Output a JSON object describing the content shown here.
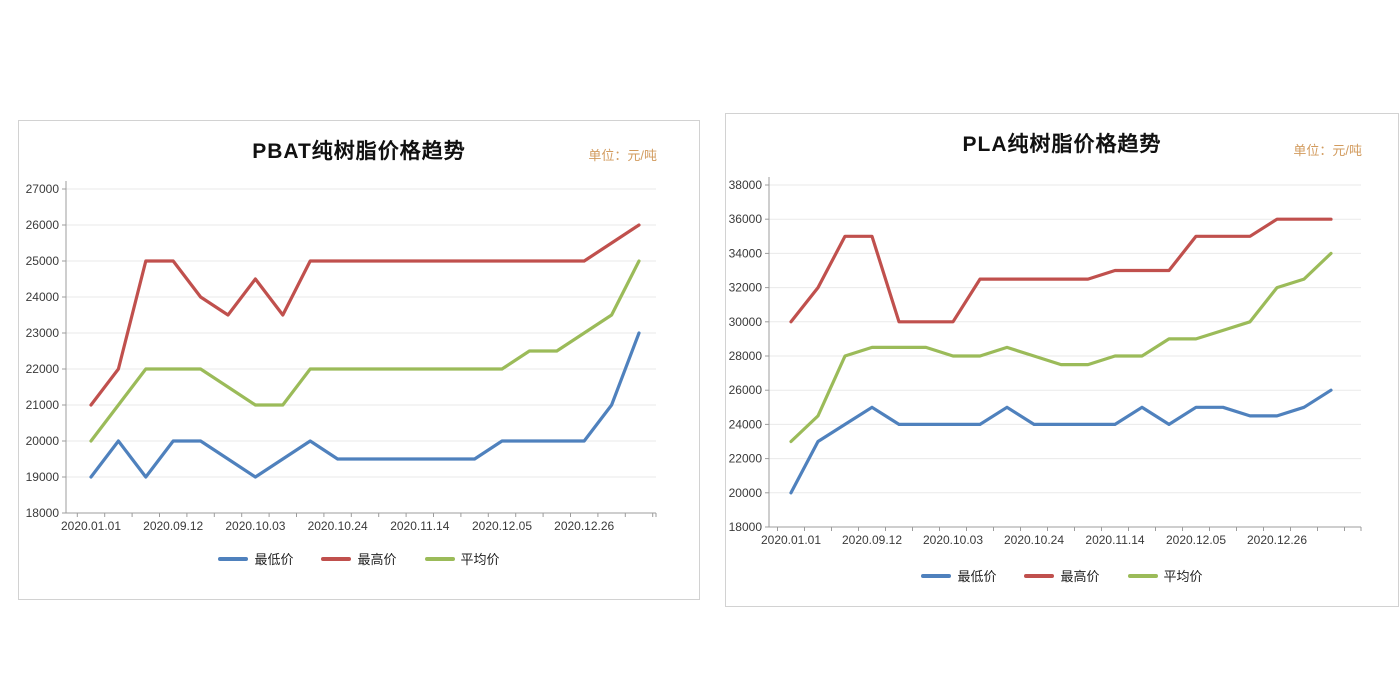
{
  "page": {
    "background": "#ffffff"
  },
  "chart_data": [
    {
      "type": "line",
      "title": "PBAT纯树脂价格趋势",
      "unit": "单位：元/吨",
      "xlabel": "",
      "ylabel": "",
      "ylim": [
        18000,
        27000
      ],
      "y_step": 1000,
      "n_points": 21,
      "x_label_interval": 3,
      "x_tick_labels": [
        "2020.01.01",
        "2020.09.12",
        "2020.10.03",
        "2020.10.24",
        "2020.11.14",
        "2020.12.05",
        "2020.12.26"
      ],
      "grid": "horizontal",
      "legend_position": "bottom",
      "series": [
        {
          "name": "最低价",
          "color": "#4F81BD",
          "values": [
            19000,
            20000,
            19000,
            20000,
            20000,
            19500,
            19000,
            19500,
            20000,
            19500,
            19500,
            19500,
            19500,
            19500,
            19500,
            20000,
            20000,
            20000,
            20000,
            21000,
            23000
          ]
        },
        {
          "name": "最高价",
          "color": "#C0504D",
          "values": [
            21000,
            22000,
            25000,
            25000,
            24000,
            23500,
            24500,
            23500,
            25000,
            25000,
            25000,
            25000,
            25000,
            25000,
            25000,
            25000,
            25000,
            25000,
            25000,
            25500,
            26000
          ]
        },
        {
          "name": "平均价",
          "color": "#9BBB59",
          "values": [
            20000,
            21000,
            22000,
            22000,
            22000,
            21500,
            21000,
            21000,
            22000,
            22000,
            22000,
            22000,
            22000,
            22000,
            22000,
            22000,
            22500,
            22500,
            23000,
            23500,
            25000
          ]
        }
      ]
    },
    {
      "type": "line",
      "title": "PLA纯树脂价格趋势",
      "unit": "单位：元/吨",
      "xlabel": "",
      "ylabel": "",
      "ylim": [
        18000,
        38000
      ],
      "y_step": 2000,
      "n_points": 21,
      "x_label_interval": 3,
      "x_tick_labels": [
        "2020.01.01",
        "2020.09.12",
        "2020.10.03",
        "2020.10.24",
        "2020.11.14",
        "2020.12.05",
        "2020.12.26"
      ],
      "grid": "horizontal",
      "legend_position": "bottom",
      "series": [
        {
          "name": "最低价",
          "color": "#4F81BD",
          "values": [
            20000,
            23000,
            24000,
            25000,
            24000,
            24000,
            24000,
            24000,
            25000,
            24000,
            24000,
            24000,
            24000,
            25000,
            24000,
            25000,
            25000,
            24500,
            24500,
            25000,
            26000
          ]
        },
        {
          "name": "最高价",
          "color": "#C0504D",
          "values": [
            30000,
            32000,
            35000,
            35000,
            30000,
            30000,
            30000,
            32500,
            32500,
            32500,
            32500,
            32500,
            33000,
            33000,
            33000,
            35000,
            35000,
            35000,
            36000,
            36000,
            36000
          ]
        },
        {
          "name": "平均价",
          "color": "#9BBB59",
          "values": [
            23000,
            24500,
            28000,
            28500,
            28500,
            28500,
            28000,
            28000,
            28500,
            28000,
            27500,
            27500,
            28000,
            28000,
            29000,
            29000,
            29500,
            30000,
            32000,
            32500,
            34000
          ]
        }
      ]
    }
  ]
}
